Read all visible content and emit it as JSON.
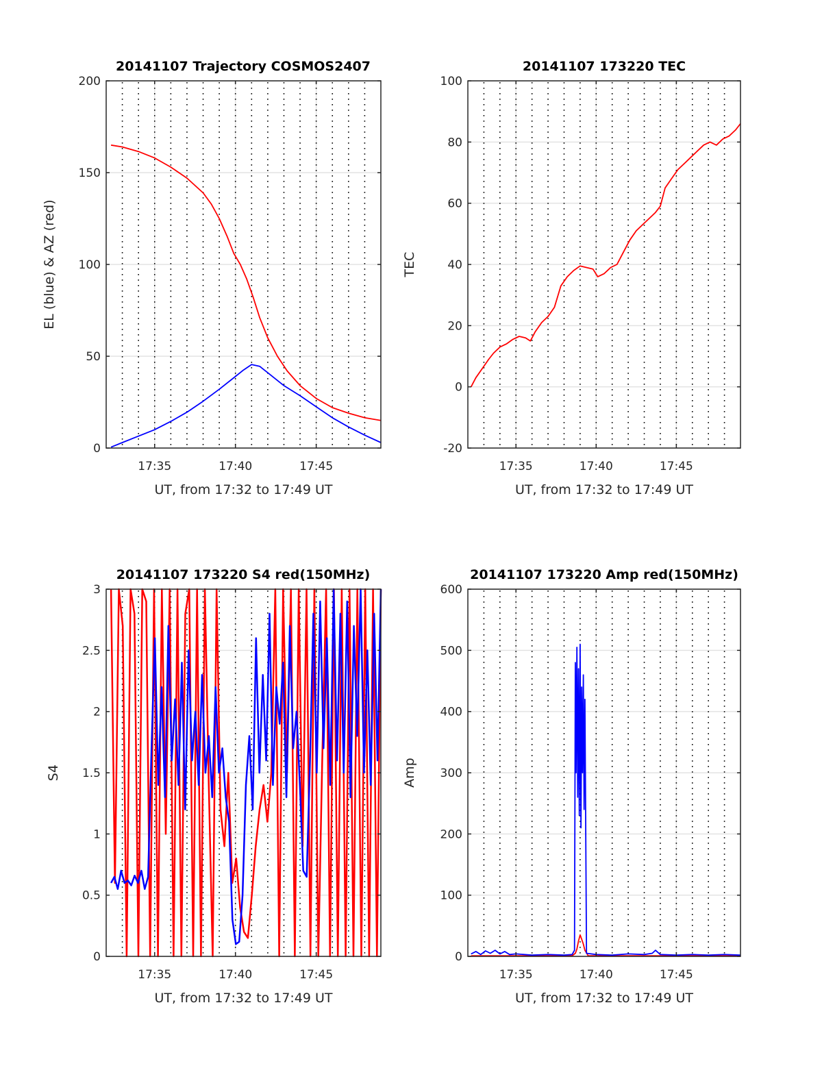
{
  "chart_data": [
    {
      "type": "line",
      "title": "20141107 Trajectory COSMOS2407",
      "xlabel": "UT, from 17:32 to 17:49 UT",
      "ylabel": "EL (blue) & AZ (red)",
      "x_unit": "minutes after 17:32 UT",
      "xlim": [
        0,
        17
      ],
      "ylim": [
        0,
        200
      ],
      "xticks": [
        {
          "v": 3,
          "label": "17:35"
        },
        {
          "v": 8,
          "label": "17:40"
        },
        {
          "v": 13,
          "label": "17:45"
        }
      ],
      "yticks": [
        {
          "v": 0,
          "label": "0"
        },
        {
          "v": 50,
          "label": "50"
        },
        {
          "v": 100,
          "label": "100"
        },
        {
          "v": 150,
          "label": "150"
        },
        {
          "v": 200,
          "label": "200"
        }
      ],
      "grid": true,
      "series": [
        {
          "name": "AZ",
          "color": "#ff0000",
          "x": [
            0.3,
            1,
            2,
            3,
            4,
            5,
            6,
            6.5,
            7,
            7.5,
            7.9,
            8.3,
            8.7,
            9.1,
            9.5,
            10,
            10.6,
            11.2,
            12,
            13,
            14,
            15,
            16,
            17
          ],
          "y": [
            165,
            164,
            161.5,
            158,
            153,
            147,
            139,
            133,
            125,
            115,
            106,
            100,
            92,
            82,
            71,
            60,
            50,
            42,
            34,
            27,
            22,
            19,
            16.5,
            15
          ]
        },
        {
          "name": "EL",
          "color": "#0000ff",
          "x": [
            0.3,
            1,
            2,
            3,
            4,
            5,
            6,
            7,
            8,
            8.5,
            9,
            9.5,
            10,
            11,
            12,
            13,
            14,
            15,
            16,
            17
          ],
          "y": [
            0.5,
            3,
            6.5,
            10,
            14.5,
            19.5,
            25.5,
            32,
            39,
            42.5,
            45.5,
            44.5,
            41,
            34,
            28.5,
            22.5,
            16.5,
            11.5,
            7,
            3
          ]
        }
      ]
    },
    {
      "type": "line",
      "title": "20141107 173220 TEC",
      "xlabel": "UT, from 17:32 to 17:49 UT",
      "ylabel": "TEC",
      "x_unit": "minutes after 17:32 UT",
      "xlim": [
        0,
        17
      ],
      "ylim": [
        -20,
        100
      ],
      "xticks": [
        {
          "v": 3,
          "label": "17:35"
        },
        {
          "v": 8,
          "label": "17:40"
        },
        {
          "v": 13,
          "label": "17:45"
        }
      ],
      "yticks": [
        {
          "v": -20,
          "label": "-20"
        },
        {
          "v": 0,
          "label": "0"
        },
        {
          "v": 20,
          "label": "20"
        },
        {
          "v": 40,
          "label": "40"
        },
        {
          "v": 60,
          "label": "60"
        },
        {
          "v": 80,
          "label": "80"
        },
        {
          "v": 100,
          "label": "100"
        }
      ],
      "grid": true,
      "series": [
        {
          "name": "TEC",
          "color": "#ff0000",
          "x": [
            0.2,
            0.5,
            0.9,
            1.3,
            1.6,
            2.0,
            2.4,
            2.8,
            3.2,
            3.6,
            3.9,
            4.2,
            4.6,
            5.0,
            5.4,
            5.8,
            6.2,
            6.6,
            7.0,
            7.4,
            7.8,
            8.1,
            8.5,
            8.9,
            9.3,
            9.7,
            10.1,
            10.5,
            10.9,
            11.3,
            11.7,
            12.0,
            12.3,
            12.7,
            13.1,
            13.5,
            13.9,
            14.3,
            14.7,
            15.1,
            15.5,
            15.9,
            16.3,
            16.7,
            17
          ],
          "y": [
            0,
            3,
            6,
            9,
            11,
            13,
            14,
            15.5,
            16.5,
            16,
            15,
            18,
            21,
            23,
            26,
            33,
            36,
            38,
            39.5,
            39,
            38.5,
            36,
            37,
            39,
            40,
            44,
            48,
            51,
            53,
            55,
            57,
            59,
            65,
            68,
            71,
            73,
            75,
            77,
            79,
            80,
            79,
            81,
            82,
            84,
            86
          ]
        }
      ]
    },
    {
      "type": "line",
      "title": "20141107 173220 S4 red(150MHz)",
      "xlabel": "UT, from 17:32 to 17:49 UT",
      "ylabel": "S4",
      "x_unit": "minutes after 17:32 UT",
      "xlim": [
        0,
        17
      ],
      "ylim": [
        0,
        3
      ],
      "xticks": [
        {
          "v": 3,
          "label": "17:35"
        },
        {
          "v": 8,
          "label": "17:40"
        },
        {
          "v": 13,
          "label": "17:45"
        }
      ],
      "yticks": [
        {
          "v": 0,
          "label": "0"
        },
        {
          "v": 0.5,
          "label": "0.5"
        },
        {
          "v": 1,
          "label": "1"
        },
        {
          "v": 1.5,
          "label": "1.5"
        },
        {
          "v": 2,
          "label": "2"
        },
        {
          "v": 2.5,
          "label": "2.5"
        },
        {
          "v": 3,
          "label": "3"
        }
      ],
      "grid": true,
      "series": [
        {
          "name": "S4 red",
          "color": "#ff0000",
          "y": [
            3,
            0.6,
            3,
            2.7,
            0,
            3,
            2.8,
            0,
            3,
            2.9,
            0,
            3,
            0,
            3,
            1.0,
            3,
            0,
            3,
            0,
            2.8,
            3,
            0,
            3,
            0,
            3,
            1.4,
            0,
            3,
            1.2,
            0.9,
            1.5,
            0.6,
            0.8,
            0.4,
            0.2,
            0.15,
            0.5,
            0.9,
            1.2,
            1.4,
            1.1,
            1.5,
            3,
            0,
            3,
            1.5,
            3,
            0,
            3,
            0.9,
            3,
            0,
            3,
            0,
            1.6,
            3,
            0,
            3,
            0,
            3,
            0,
            3,
            0,
            3,
            0,
            3,
            0,
            3,
            0,
            3
          ]
        },
        {
          "name": "S4 blue",
          "color": "#0000ff",
          "y": [
            0.6,
            0.65,
            0.55,
            0.7,
            0.6,
            0.62,
            0.58,
            0.66,
            0.6,
            0.7,
            0.55,
            0.65,
            1.7,
            2.6,
            1.4,
            2.2,
            1.3,
            2.7,
            1.6,
            2.1,
            1.4,
            2.4,
            1.2,
            2.5,
            1.6,
            2.0,
            1.4,
            2.3,
            1.5,
            1.8,
            1.3,
            2.2,
            1.5,
            1.7,
            1.3,
            1.1,
            0.3,
            0.1,
            0.12,
            0.5,
            1.4,
            1.8,
            1.2,
            2.6,
            1.5,
            2.3,
            1.6,
            2.8,
            1.4,
            2.2,
            1.9,
            2.4,
            1.3,
            2.7,
            1.7,
            2.0,
            1.4,
            0.7,
            0.65,
            1.6,
            2.8,
            1.5,
            2.9,
            1.7,
            2.6,
            1.4,
            3,
            1.6,
            2.8,
            1.5,
            2.9,
            1.3,
            2.7,
            1.8,
            3,
            1.5,
            2.5,
            1.4,
            2.8,
            1.6,
            3
          ]
        }
      ]
    },
    {
      "type": "line",
      "title": "20141107 173220 Amp red(150MHz)",
      "xlabel": "UT, from 17:32 to 17:49 UT",
      "ylabel": "Amp",
      "x_unit": "minutes after 17:32 UT",
      "xlim": [
        0,
        17
      ],
      "ylim": [
        0,
        600
      ],
      "xticks": [
        {
          "v": 3,
          "label": "17:35"
        },
        {
          "v": 8,
          "label": "17:40"
        },
        {
          "v": 13,
          "label": "17:45"
        }
      ],
      "yticks": [
        {
          "v": 0,
          "label": "0"
        },
        {
          "v": 100,
          "label": "100"
        },
        {
          "v": 200,
          "label": "200"
        },
        {
          "v": 300,
          "label": "300"
        },
        {
          "v": 400,
          "label": "400"
        },
        {
          "v": 500,
          "label": "500"
        },
        {
          "v": 600,
          "label": "600"
        }
      ],
      "grid": true,
      "series": [
        {
          "name": "Amp red",
          "color": "#ff0000",
          "x": [
            0.2,
            6.5,
            6.7,
            6.8,
            6.9,
            7.0,
            7.1,
            7.2,
            7.3,
            7.5,
            17
          ],
          "y": [
            1,
            1,
            5,
            12,
            25,
            35,
            28,
            20,
            10,
            1,
            1
          ]
        },
        {
          "name": "Amp blue",
          "color": "#0000ff",
          "x": [
            0.2,
            0.5,
            0.8,
            1.1,
            1.4,
            1.7,
            2.0,
            2.3,
            2.6,
            3.0,
            4,
            5,
            6,
            6.5,
            6.65,
            6.7,
            6.75,
            6.8,
            6.85,
            6.9,
            6.95,
            7.0,
            7.05,
            7.1,
            7.15,
            7.2,
            7.25,
            7.3,
            7.4,
            8,
            9,
            10,
            11,
            11.5,
            11.7,
            12,
            13,
            14,
            15,
            16,
            17
          ],
          "y": [
            4,
            8,
            3,
            9,
            5,
            10,
            4,
            8,
            3,
            4,
            2,
            3,
            2,
            3,
            10,
            480,
            300,
            505,
            260,
            470,
            230,
            510,
            210,
            440,
            300,
            460,
            240,
            420,
            5,
            3,
            2,
            4,
            3,
            5,
            10,
            3,
            2,
            3,
            2,
            3,
            2
          ]
        }
      ]
    }
  ]
}
